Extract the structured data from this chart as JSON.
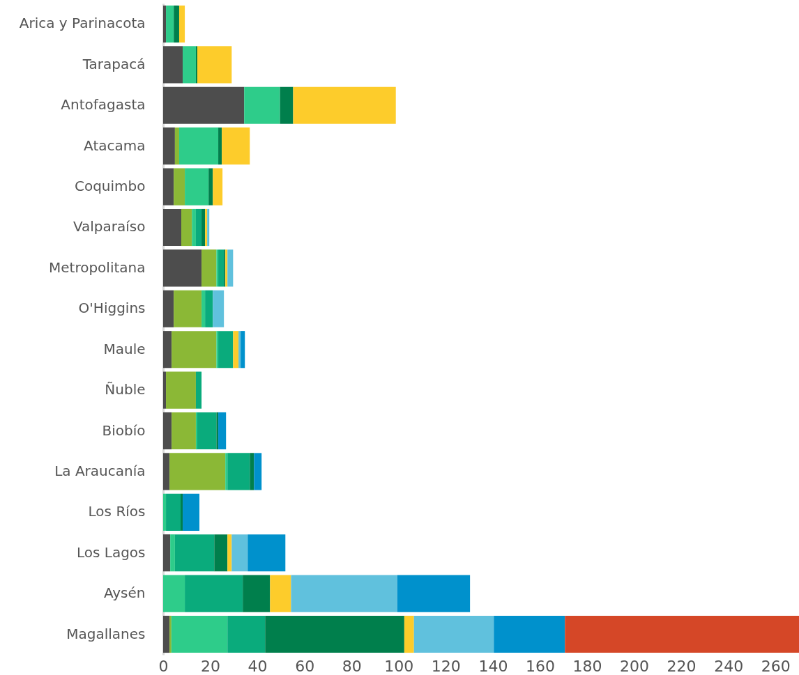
{
  "chart_data": {
    "type": "bar",
    "orientation": "horizontal",
    "stacked": true,
    "grid": false,
    "categories": [
      "Arica y Parinacota",
      "Tarapacá",
      "Antofagasta",
      "Atacama",
      "Coquimbo",
      "Valparaíso",
      "Metropolitana",
      "O'Higgins",
      "Maule",
      "Ñuble",
      "Biobío",
      "La Araucanía",
      "Los Ríos",
      "Los Lagos",
      "Aysén",
      "Magallanes"
    ],
    "xlim": [
      0,
      270
    ],
    "xticks": [
      0,
      20,
      40,
      60,
      80,
      100,
      120,
      140,
      160,
      180,
      200,
      220,
      240,
      260
    ],
    "series": [
      {
        "color": "#4d4d4d",
        "values": [
          1.2,
          8.3,
          34.4,
          5.0,
          4.5,
          7.7,
          16.3,
          4.5,
          3.6,
          1.2,
          3.6,
          2.7,
          null,
          3.0,
          null,
          2.7
        ]
      },
      {
        "color": "#8bb836",
        "values": [
          null,
          null,
          null,
          1.8,
          4.7,
          4.5,
          6.3,
          11.8,
          19.0,
          12.7,
          10.3,
          23.7,
          null,
          null,
          null,
          0.8
        ]
      },
      {
        "color": "#2ecc8a",
        "values": [
          3.3,
          5.6,
          15.2,
          16.6,
          10.1,
          1.7,
          0.8,
          1.5,
          0.8,
          null,
          0.6,
          0.9,
          1.2,
          2.0,
          9.2,
          23.8
        ]
      },
      {
        "color": "#0aab7c",
        "values": [
          null,
          null,
          null,
          null,
          null,
          2.4,
          2.4,
          3.3,
          6.3,
          2.4,
          8.1,
          9.5,
          6.2,
          16.7,
          24.6,
          16.0
        ]
      },
      {
        "color": "#007f4c",
        "values": [
          2.3,
          0.6,
          5.6,
          1.5,
          1.8,
          1.5,
          0.6,
          null,
          null,
          null,
          0.8,
          1.8,
          0.9,
          5.6,
          11.6,
          59.1
        ]
      },
      {
        "color": "#fdcc2b",
        "values": [
          2.4,
          14.6,
          43.6,
          11.9,
          4.1,
          0.9,
          0.9,
          null,
          2.3,
          null,
          null,
          null,
          null,
          1.8,
          8.9,
          4.1
        ]
      },
      {
        "color": "#60c1dd",
        "values": [
          null,
          null,
          null,
          null,
          null,
          0.9,
          2.4,
          4.7,
          0.9,
          null,
          null,
          null,
          null,
          6.8,
          45.1,
          33.9
        ]
      },
      {
        "color": "#0091cc",
        "values": [
          null,
          null,
          null,
          null,
          null,
          null,
          null,
          null,
          1.8,
          null,
          3.3,
          3.2,
          7.1,
          16.0,
          30.9,
          30.2
        ]
      },
      {
        "color": "#d54727",
        "values": [
          null,
          null,
          null,
          null,
          null,
          null,
          null,
          null,
          null,
          null,
          null,
          null,
          null,
          null,
          null,
          99.4
        ]
      }
    ]
  }
}
